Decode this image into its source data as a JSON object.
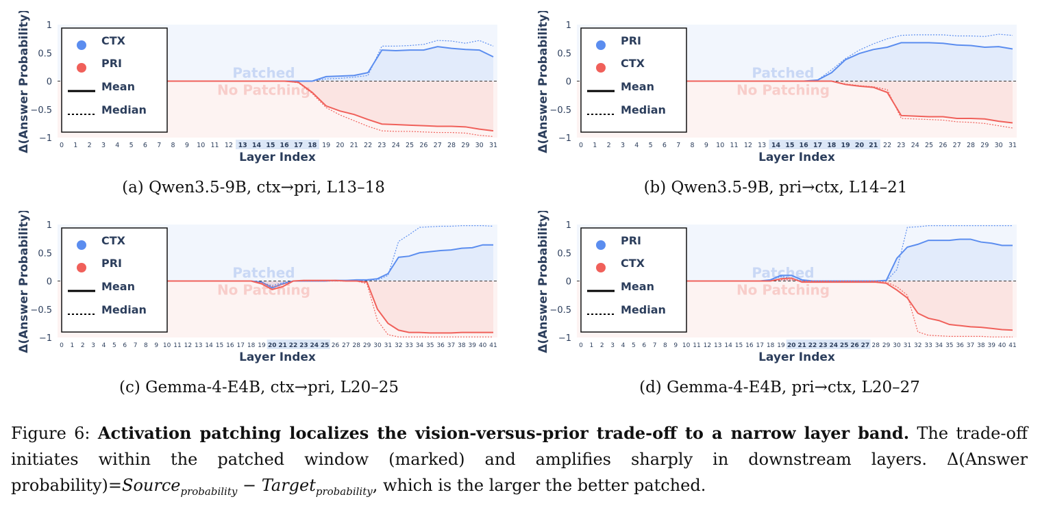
{
  "figure": {
    "label": "Figure 6:",
    "title": "Activation patching localizes the vision-versus-prior trade-off to a narrow layer band.",
    "text1": "The trade-off initiates within the patched window (marked) and amplifies sharply in downstream layers.",
    "delta_lead": "Δ(Answer probability)=",
    "source": "Source",
    "target": "Target",
    "sub": "probability",
    "minus": " − ",
    "text2": ", which is the larger the better patched."
  },
  "colors": {
    "blue": "#5b8def",
    "red": "#f0605a",
    "blue_fill": "#e8effc",
    "red_fill": "#fdf0ef",
    "axis_text": "#2c3e5c",
    "patched_band": "#dce7f7"
  },
  "chart_data": [
    {
      "panel": "a",
      "caption": "(a) Qwen3.5-9B, ctx→pri, L13–18",
      "type": "line",
      "ylabel": "Δ(Answer Probability)",
      "xlabel": "Layer Index",
      "ylim": [
        -1,
        1
      ],
      "yticks": [
        "1",
        "0.5",
        "0",
        "−0.5",
        "−1"
      ],
      "xticks": [
        "0",
        "1",
        "2",
        "3",
        "4",
        "5",
        "6",
        "7",
        "8",
        "9",
        "10",
        "11",
        "12",
        "13",
        "14",
        "15",
        "16",
        "17",
        "18",
        "19",
        "20",
        "21",
        "22",
        "23",
        "24",
        "25",
        "26",
        "27",
        "28",
        "29",
        "30",
        "31"
      ],
      "patched": [
        13,
        18
      ],
      "upper_label": "Patched",
      "lower_label": "No Patching",
      "legend": [
        "CTX",
        "PRI",
        "Mean",
        "Median"
      ],
      "legend_position": "upper-left",
      "series": [
        {
          "name": "CTX",
          "color": "blue",
          "style": "mean",
          "values": [
            0,
            0,
            0,
            0,
            0,
            0,
            0,
            0,
            0,
            0,
            0,
            0,
            0,
            0,
            0,
            0,
            0,
            0,
            0,
            0.08,
            0.09,
            0.1,
            0.15,
            0.55,
            0.54,
            0.55,
            0.55,
            0.61,
            0.58,
            0.56,
            0.55,
            0.43
          ]
        },
        {
          "name": "CTX",
          "color": "blue",
          "style": "median",
          "values": [
            0,
            0,
            0,
            0,
            0,
            0,
            0,
            0,
            0,
            0,
            0,
            0,
            0,
            0,
            0,
            0,
            0,
            0,
            0,
            0.04,
            0.05,
            0.07,
            0.1,
            0.62,
            0.62,
            0.63,
            0.65,
            0.72,
            0.71,
            0.67,
            0.72,
            0.62
          ]
        },
        {
          "name": "PRI",
          "color": "red",
          "style": "mean",
          "values": [
            0,
            0,
            0,
            0,
            0,
            0,
            0,
            0,
            0,
            0,
            0,
            0,
            0,
            0,
            0,
            0,
            0,
            -0.02,
            -0.2,
            -0.44,
            -0.53,
            -0.59,
            -0.68,
            -0.76,
            -0.77,
            -0.78,
            -0.79,
            -0.8,
            -0.8,
            -0.81,
            -0.85,
            -0.88
          ]
        },
        {
          "name": "PRI",
          "color": "red",
          "style": "median",
          "values": [
            0,
            0,
            0,
            0,
            0,
            0,
            0,
            0,
            0,
            0,
            0,
            0,
            0,
            0,
            0,
            0,
            0,
            -0.03,
            -0.22,
            -0.47,
            -0.6,
            -0.7,
            -0.8,
            -0.88,
            -0.89,
            -0.89,
            -0.9,
            -0.91,
            -0.91,
            -0.92,
            -0.96,
            -0.98
          ]
        }
      ]
    },
    {
      "panel": "b",
      "caption": "(b) Qwen3.5-9B, pri→ctx, L14–21",
      "type": "line",
      "ylabel": "Δ(Answer Probability)",
      "xlabel": "Layer Index",
      "ylim": [
        -1,
        1
      ],
      "yticks": [
        "1",
        "0.5",
        "0",
        "−0.5",
        "−1"
      ],
      "xticks": [
        "0",
        "1",
        "2",
        "3",
        "4",
        "5",
        "6",
        "7",
        "8",
        "9",
        "10",
        "11",
        "12",
        "13",
        "14",
        "15",
        "16",
        "17",
        "18",
        "19",
        "20",
        "21",
        "22",
        "23",
        "24",
        "25",
        "26",
        "27",
        "28",
        "29",
        "30",
        "31"
      ],
      "patched": [
        14,
        21
      ],
      "upper_label": "Patched",
      "lower_label": "No Patching",
      "legend": [
        "PRI",
        "CTX",
        "Mean",
        "Median"
      ],
      "legend_position": "upper-left",
      "series": [
        {
          "name": "PRI",
          "color": "blue",
          "style": "mean",
          "values": [
            0,
            0,
            0,
            0,
            0,
            0,
            0,
            0,
            0,
            0,
            0,
            0,
            0,
            0,
            0,
            0,
            0,
            0.02,
            0.15,
            0.38,
            0.49,
            0.56,
            0.6,
            0.68,
            0.68,
            0.68,
            0.67,
            0.64,
            0.63,
            0.6,
            0.61,
            0.57
          ]
        },
        {
          "name": "PRI",
          "color": "blue",
          "style": "median",
          "values": [
            0,
            0,
            0,
            0,
            0,
            0,
            0,
            0,
            0,
            0,
            0,
            0,
            0,
            0,
            0,
            0,
            0,
            0.02,
            0.2,
            0.4,
            0.55,
            0.66,
            0.75,
            0.81,
            0.82,
            0.82,
            0.82,
            0.8,
            0.8,
            0.79,
            0.83,
            0.81
          ]
        },
        {
          "name": "CTX",
          "color": "red",
          "style": "mean",
          "values": [
            0,
            0,
            0,
            0,
            0,
            0,
            0,
            0,
            0,
            0,
            0,
            0,
            0,
            0,
            0,
            0,
            0,
            0,
            0,
            -0.06,
            -0.09,
            -0.11,
            -0.2,
            -0.61,
            -0.62,
            -0.63,
            -0.63,
            -0.66,
            -0.66,
            -0.67,
            -0.71,
            -0.74
          ]
        },
        {
          "name": "CTX",
          "color": "red",
          "style": "median",
          "values": [
            0,
            0,
            0,
            0,
            0,
            0,
            0,
            0,
            0,
            0,
            0,
            0,
            0,
            0,
            0,
            0,
            0,
            0,
            0,
            -0.05,
            -0.08,
            -0.1,
            -0.15,
            -0.66,
            -0.67,
            -0.68,
            -0.69,
            -0.72,
            -0.73,
            -0.75,
            -0.79,
            -0.83
          ]
        }
      ]
    },
    {
      "panel": "c",
      "caption": "(c) Gemma-4-E4B, ctx→pri, L20–25",
      "type": "line",
      "ylabel": "Δ(Answer Probability)",
      "xlabel": "Layer Index",
      "ylim": [
        -1,
        1
      ],
      "yticks": [
        "1",
        "0.5",
        "0",
        "−0.5",
        "−1"
      ],
      "xticks": [
        "0",
        "1",
        "2",
        "3",
        "4",
        "5",
        "6",
        "7",
        "8",
        "9",
        "10",
        "11",
        "12",
        "13",
        "14",
        "15",
        "16",
        "17",
        "18",
        "19",
        "20",
        "21",
        "22",
        "23",
        "24",
        "25",
        "26",
        "27",
        "28",
        "29",
        "30",
        "31",
        "32",
        "33",
        "34",
        "35",
        "36",
        "37",
        "38",
        "39",
        "40",
        "41"
      ],
      "patched": [
        20,
        25
      ],
      "upper_label": "Patched",
      "lower_label": "No Patching",
      "legend": [
        "CTX",
        "PRI",
        "Mean",
        "Median"
      ],
      "legend_position": "upper-left",
      "series": [
        {
          "name": "CTX",
          "color": "blue",
          "style": "mean",
          "values": [
            0,
            0,
            0,
            0,
            0,
            0,
            0,
            0,
            0,
            0,
            0,
            0,
            0,
            0,
            0,
            0,
            0,
            0,
            0,
            -0.02,
            -0.12,
            -0.05,
            0,
            0,
            0,
            0,
            0.01,
            0.01,
            0.02,
            0.02,
            0.04,
            0.13,
            0.42,
            0.44,
            0.5,
            0.52,
            0.54,
            0.55,
            0.58,
            0.59,
            0.64,
            0.64
          ]
        },
        {
          "name": "CTX",
          "color": "blue",
          "style": "median",
          "values": [
            0,
            0,
            0,
            0,
            0,
            0,
            0,
            0,
            0,
            0,
            0,
            0,
            0,
            0,
            0,
            0,
            0,
            0,
            0,
            -0.03,
            -0.08,
            -0.03,
            0,
            0,
            0,
            0,
            0,
            0,
            0.01,
            0.01,
            0.02,
            0.1,
            0.7,
            0.82,
            0.95,
            0.96,
            0.97,
            0.97,
            0.98,
            0.98,
            0.98,
            0.97
          ]
        },
        {
          "name": "PRI",
          "color": "red",
          "style": "mean",
          "values": [
            0,
            0,
            0,
            0,
            0,
            0,
            0,
            0,
            0,
            0,
            0,
            0,
            0,
            0,
            0,
            0,
            0,
            0,
            0,
            -0.05,
            -0.15,
            -0.1,
            0,
            0.01,
            0.01,
            0.01,
            0.01,
            0,
            0,
            -0.02,
            -0.5,
            -0.75,
            -0.87,
            -0.91,
            -0.91,
            -0.92,
            -0.92,
            -0.92,
            -0.91,
            -0.91,
            -0.91,
            -0.91
          ]
        },
        {
          "name": "PRI",
          "color": "red",
          "style": "median",
          "values": [
            0,
            0,
            0,
            0,
            0,
            0,
            0,
            0,
            0,
            0,
            0,
            0,
            0,
            0,
            0,
            0,
            0,
            0,
            0,
            -0.03,
            -0.1,
            -0.06,
            0,
            0,
            0,
            0,
            0,
            0,
            0,
            -0.05,
            -0.7,
            -0.95,
            -0.99,
            -0.99,
            -0.99,
            -0.99,
            -0.99,
            -0.99,
            -0.99,
            -0.99,
            -0.99,
            -0.99
          ]
        }
      ]
    },
    {
      "panel": "d",
      "caption": "(d) Gemma-4-E4B, pri→ctx, L20–27",
      "type": "line",
      "ylabel": "Δ(Answer Probability)",
      "xlabel": "Layer Index",
      "ylim": [
        -1,
        1
      ],
      "yticks": [
        "1",
        "0.5",
        "0",
        "−0.5",
        "−1"
      ],
      "xticks": [
        "0",
        "1",
        "2",
        "3",
        "4",
        "5",
        "6",
        "7",
        "8",
        "9",
        "10",
        "11",
        "12",
        "13",
        "14",
        "15",
        "16",
        "17",
        "18",
        "19",
        "20",
        "21",
        "22",
        "23",
        "24",
        "25",
        "26",
        "27",
        "28",
        "29",
        "30",
        "31",
        "32",
        "33",
        "34",
        "35",
        "36",
        "37",
        "38",
        "39",
        "40",
        "41"
      ],
      "patched": [
        20,
        27
      ],
      "upper_label": "Patched",
      "lower_label": "No Patching",
      "legend": [
        "PRI",
        "CTX",
        "Mean",
        "Median"
      ],
      "legend_position": "upper-left",
      "series": [
        {
          "name": "PRI",
          "color": "blue",
          "style": "mean",
          "values": [
            0,
            0,
            0,
            0,
            0,
            0,
            0,
            0,
            0,
            0,
            0,
            0,
            0,
            0,
            0,
            0,
            0,
            0,
            0.02,
            0.1,
            0.1,
            0.02,
            0,
            0,
            0,
            0,
            0,
            0,
            0,
            0.01,
            0.4,
            0.6,
            0.65,
            0.72,
            0.72,
            0.72,
            0.74,
            0.74,
            0.69,
            0.67,
            0.63,
            0.63
          ]
        },
        {
          "name": "PRI",
          "color": "blue",
          "style": "median",
          "values": [
            0,
            0,
            0,
            0,
            0,
            0,
            0,
            0,
            0,
            0,
            0,
            0,
            0,
            0,
            0,
            0,
            0,
            0,
            0.02,
            0.08,
            0.05,
            0,
            0,
            0,
            0,
            0,
            0,
            0,
            0,
            0,
            0.2,
            0.95,
            0.96,
            0.98,
            0.98,
            0.98,
            0.98,
            0.98,
            0.98,
            0.98,
            0.98,
            0.98
          ]
        },
        {
          "name": "CTX",
          "color": "red",
          "style": "mean",
          "values": [
            0,
            0,
            0,
            0,
            0,
            0,
            0,
            0,
            0,
            0,
            0,
            0,
            0,
            0,
            0,
            0,
            0,
            0,
            0,
            0.04,
            0.05,
            -0.02,
            -0.02,
            -0.02,
            -0.02,
            -0.02,
            -0.02,
            -0.02,
            -0.02,
            -0.04,
            -0.16,
            -0.3,
            -0.57,
            -0.66,
            -0.7,
            -0.77,
            -0.79,
            -0.81,
            -0.82,
            -0.84,
            -0.86,
            -0.87
          ]
        },
        {
          "name": "CTX",
          "color": "red",
          "style": "median",
          "values": [
            0,
            0,
            0,
            0,
            0,
            0,
            0,
            0,
            0,
            0,
            0,
            0,
            0,
            0,
            0,
            0,
            0,
            0,
            0,
            0.02,
            0.02,
            0,
            0,
            0,
            0,
            0,
            0,
            0,
            0,
            -0.02,
            -0.1,
            -0.25,
            -0.9,
            -0.96,
            -0.97,
            -0.98,
            -0.98,
            -0.98,
            -0.98,
            -0.99,
            -0.99,
            -0.99
          ]
        }
      ]
    }
  ]
}
